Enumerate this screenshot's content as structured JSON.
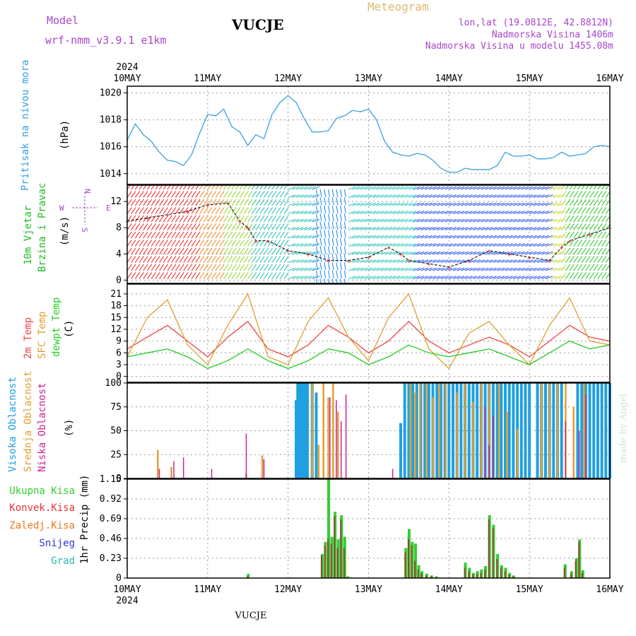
{
  "header": {
    "model_label": "Model",
    "model_name": "wrf-nmm_v3.9.1  e1km",
    "station": "VUCJE",
    "meteogram_label": "Meteogram",
    "lonlat": "lon,lat (19.0812E, 42.8812N)",
    "altitude": "Nadmorska Visina 1406m",
    "model_altitude": "Nadmorska Visina u modelu 1455.08m",
    "footer_station": "VUCJE",
    "credit": "made by Angel"
  },
  "colors": {
    "pressure": "#3aa0e0",
    "wind_label": "#22bb22",
    "temp2m": "#ee4444",
    "sfc": "#e0a030",
    "dewpt": "#22cc22",
    "cloud_high": "#20a0e0",
    "cloud_mid": "#e0a030",
    "cloud_low": "#cc2299",
    "rain_total": "#33cc33",
    "rain_conv": "#ee3333",
    "rain_frozen": "#ee7722",
    "snow": "#3333dd",
    "graupel": "#22bbaa",
    "legend_violet": "#aa44cc"
  },
  "chart_data": [
    {
      "id": "pressure",
      "type": "line",
      "ylabel_main": "Pritisak na nivou mora",
      "ylabel_unit": "(hPa)",
      "year_label": "2024",
      "x_ticks": [
        "10MAY",
        "11MAY",
        "12MAY",
        "13MAY",
        "14MAY",
        "15MAY",
        "16MAY"
      ],
      "y_ticks": [
        "1014",
        "1016",
        "1018",
        "1020"
      ],
      "ylim": [
        1013.2,
        1020.5
      ],
      "x": [
        0,
        0.1,
        0.2,
        0.3,
        0.4,
        0.5,
        0.6,
        0.7,
        0.8,
        0.9,
        1.0,
        1.1,
        1.2,
        1.3,
        1.4,
        1.5,
        1.6,
        1.7,
        1.8,
        1.9,
        2.0,
        2.1,
        2.2,
        2.3,
        2.4,
        2.5,
        2.6,
        2.7,
        2.8,
        2.9,
        3.0,
        3.1,
        3.2,
        3.3,
        3.4,
        3.5,
        3.6,
        3.7,
        3.8,
        3.9,
        4.0,
        4.1,
        4.2,
        4.3,
        4.4,
        4.5,
        4.6,
        4.7,
        4.8,
        4.9,
        5.0,
        5.1,
        5.2,
        5.3,
        5.4,
        5.5,
        5.6,
        5.7,
        5.8,
        5.9,
        6.0
      ],
      "values": [
        1016.5,
        1017.7,
        1016.9,
        1016.4,
        1015.6,
        1015.0,
        1014.9,
        1014.6,
        1015.4,
        1017.0,
        1018.4,
        1018.3,
        1018.8,
        1017.5,
        1017.1,
        1016.1,
        1016.9,
        1016.6,
        1018.4,
        1019.3,
        1019.8,
        1019.3,
        1018.1,
        1017.1,
        1017.1,
        1017.2,
        1018.1,
        1018.3,
        1018.7,
        1018.6,
        1018.8,
        1018.0,
        1016.4,
        1015.6,
        1015.4,
        1015.3,
        1015.5,
        1015.4,
        1015.0,
        1014.4,
        1014.1,
        1014.1,
        1014.4,
        1014.3,
        1014.3,
        1014.3,
        1014.6,
        1015.6,
        1015.3,
        1015.3,
        1015.4,
        1015.1,
        1015.1,
        1015.2,
        1015.6,
        1015.3,
        1015.4,
        1015.5,
        1016.0,
        1016.1,
        1016.0
      ]
    },
    {
      "id": "wind",
      "type": "line",
      "ylabel_main": "10m Vjetar",
      "ylabel_sub": "Brzina i Pravac",
      "ylabel_unit": "(m/s)",
      "compass_labels": [
        "N",
        "W",
        "E",
        "S"
      ],
      "y_ticks": [
        "0",
        "4",
        "8",
        "12"
      ],
      "ylim": [
        -0.5,
        14.5
      ],
      "x": [
        0,
        0.25,
        0.5,
        0.75,
        1.0,
        1.25,
        1.4,
        1.5,
        1.6,
        1.75,
        2.0,
        2.25,
        2.5,
        2.75,
        3.0,
        3.25,
        3.4,
        3.5,
        3.75,
        4.0,
        4.25,
        4.5,
        4.75,
        5.0,
        5.25,
        5.4,
        5.5,
        5.75,
        6.0
      ],
      "values": [
        9,
        9.5,
        10,
        10.5,
        11.5,
        11.8,
        9,
        8,
        6,
        6,
        4.5,
        4,
        3,
        3,
        3.5,
        5,
        4,
        3,
        2.5,
        2,
        3,
        4.5,
        4,
        3.5,
        3,
        5,
        6,
        7,
        8
      ]
    },
    {
      "id": "temperature",
      "type": "line",
      "ylabels": [
        "2m Temp",
        "SFC Temp",
        "dewpt Temp"
      ],
      "ylabel_unit": "(C)",
      "y_ticks": [
        "0",
        "3",
        "6",
        "9",
        "12",
        "15",
        "18",
        "21"
      ],
      "ylim": [
        -1.5,
        23.5
      ],
      "x": [
        0,
        0.25,
        0.5,
        0.75,
        1.0,
        1.25,
        1.5,
        1.75,
        2.0,
        2.25,
        2.5,
        2.75,
        3.0,
        3.25,
        3.5,
        3.75,
        4.0,
        4.25,
        4.5,
        4.75,
        5.0,
        5.25,
        5.5,
        5.75,
        6.0
      ],
      "series": [
        {
          "name": "2m Temp",
          "values": [
            7,
            10,
            13,
            9,
            5,
            10,
            14,
            7,
            5,
            8,
            13,
            10,
            6,
            9,
            14,
            9,
            6,
            8,
            10,
            8,
            5,
            9,
            13,
            10,
            9
          ]
        },
        {
          "name": "SFC Temp",
          "values": [
            5,
            15,
            19.5,
            8,
            3,
            13,
            21,
            5,
            3,
            14,
            20,
            10,
            4,
            15,
            21,
            7,
            2,
            11,
            14,
            8,
            3,
            13,
            20,
            9,
            8
          ]
        },
        {
          "name": "dewpt Temp",
          "values": [
            5,
            6,
            7,
            5,
            2,
            4,
            7,
            4,
            2,
            4,
            7,
            6,
            3,
            5,
            8,
            6,
            5,
            6,
            7,
            5,
            3,
            6,
            9,
            7,
            8
          ]
        }
      ]
    },
    {
      "id": "clouds",
      "type": "bar",
      "ylabels": [
        "Visoka Oblacnost",
        "Srednja Oblacnost",
        "Niska Oblacnost"
      ],
      "ylabel_unit": "(%)",
      "y_ticks": [
        "0",
        "25",
        "50",
        "75",
        "100"
      ],
      "ylim": [
        0,
        100
      ],
      "series": [
        {
          "name": "Visoka Oblacnost",
          "x": [
            2.1,
            2.12,
            2.14,
            2.16,
            2.18,
            2.2,
            2.22,
            2.24,
            2.3,
            2.35,
            3.4,
            3.45,
            3.5,
            3.55,
            3.6,
            3.65,
            3.7,
            3.75,
            3.8,
            3.85,
            3.9,
            3.95,
            4.0,
            4.05,
            4.1,
            4.15,
            4.2,
            4.25,
            4.3,
            4.35,
            4.4,
            4.45,
            4.5,
            4.55,
            4.6,
            4.65,
            4.7,
            4.75,
            4.8,
            4.85,
            4.9,
            4.95,
            5.0,
            5.1,
            5.15,
            5.2,
            5.25,
            5.3,
            5.35,
            5.4,
            5.6,
            5.65,
            5.7,
            5.75,
            5.8,
            5.85,
            5.9,
            5.95,
            6.0
          ],
          "values": [
            82,
            100,
            100,
            100,
            100,
            100,
            100,
            100,
            100,
            90,
            58,
            100,
            100,
            100,
            100,
            100,
            100,
            100,
            100,
            100,
            100,
            100,
            100,
            100,
            100,
            100,
            100,
            100,
            100,
            100,
            100,
            100,
            100,
            100,
            100,
            100,
            100,
            100,
            100,
            100,
            100,
            100,
            100,
            100,
            100,
            100,
            100,
            100,
            100,
            100,
            100,
            100,
            100,
            100,
            100,
            100,
            100,
            100,
            100
          ]
        },
        {
          "name": "Srednja Oblacnost",
          "x": [
            0.38,
            0.55,
            1.48,
            1.68,
            2.3,
            2.38,
            2.44,
            2.5,
            2.56,
            2.62,
            3.52,
            3.58,
            3.64,
            3.72,
            3.8,
            3.88,
            3.96,
            4.1,
            4.2,
            4.3,
            4.4,
            4.5,
            4.62,
            4.72,
            4.85,
            5.15,
            5.25,
            5.35,
            5.45,
            5.55,
            5.68
          ],
          "values": [
            30,
            12,
            5,
            24,
            100,
            35,
            100,
            85,
            100,
            70,
            100,
            90,
            100,
            100,
            85,
            100,
            100,
            90,
            100,
            80,
            100,
            100,
            100,
            70,
            52,
            100,
            100,
            100,
            100,
            75,
            100
          ]
        },
        {
          "name": "Niska Oblacnost",
          "x": [
            0.4,
            0.58,
            0.7,
            1.05,
            1.48,
            1.7,
            2.52,
            2.6,
            2.66,
            2.72,
            3.3,
            4.45,
            4.5,
            4.55,
            5.45,
            5.62,
            5.7
          ],
          "values": [
            10,
            18,
            22,
            10,
            47,
            20,
            85,
            82,
            60,
            88,
            10,
            75,
            35,
            65,
            60,
            50,
            88
          ]
        }
      ]
    },
    {
      "id": "precipitation",
      "type": "bar",
      "ylabels": [
        "Ukupna Kisa",
        "Konvek.Kisa",
        "Zaledj.Kisa",
        "Snijeg",
        "Grad"
      ],
      "ylabel_unit": "1hr Precip (mm)",
      "year_label": "2024",
      "x_ticks": [
        "10MAY",
        "11MAY",
        "12MAY",
        "13MAY",
        "14MAY",
        "15MAY",
        "16MAY"
      ],
      "y_ticks": [
        "0",
        "0.23",
        "0.46",
        "0.69",
        "0.92",
        "1.15"
      ],
      "ylim": [
        0,
        1.15
      ],
      "x": [
        1.5,
        2.42,
        2.46,
        2.5,
        2.54,
        2.58,
        2.62,
        2.66,
        2.7,
        2.74,
        3.46,
        3.5,
        3.54,
        3.58,
        3.62,
        3.66,
        3.72,
        3.78,
        3.84,
        4.2,
        4.25,
        4.3,
        4.35,
        4.4,
        4.45,
        4.5,
        4.55,
        4.6,
        4.65,
        4.7,
        4.75,
        4.8,
        5.44,
        5.52,
        5.58,
        5.62,
        5.66
      ],
      "series": [
        {
          "name": "Ukupna Kisa",
          "values": [
            0.05,
            0.28,
            0.42,
            1.15,
            0.48,
            0.77,
            0.45,
            0.73,
            0.48,
            0.02,
            0.35,
            0.57,
            0.42,
            0.4,
            0.15,
            0.08,
            0.05,
            0.03,
            0.02,
            0.18,
            0.12,
            0.06,
            0.08,
            0.1,
            0.14,
            0.73,
            0.62,
            0.28,
            0.15,
            0.12,
            0.06,
            0.03,
            0.16,
            0.08,
            0.23,
            0.45,
            0.09
          ]
        },
        {
          "name": "Konvek.Kisa",
          "values": [
            0.02,
            0.26,
            0.38,
            0.45,
            0.4,
            0.72,
            0.35,
            0.68,
            0.35,
            0.01,
            0.3,
            0.45,
            0.38,
            0.2,
            0.1,
            0.05,
            0.03,
            0.02,
            0.01,
            0.12,
            0.08,
            0.04,
            0.05,
            0.06,
            0.1,
            0.68,
            0.58,
            0.22,
            0.12,
            0.08,
            0.04,
            0.02,
            0.12,
            0.05,
            0.2,
            0.42,
            0.06
          ]
        }
      ]
    }
  ]
}
